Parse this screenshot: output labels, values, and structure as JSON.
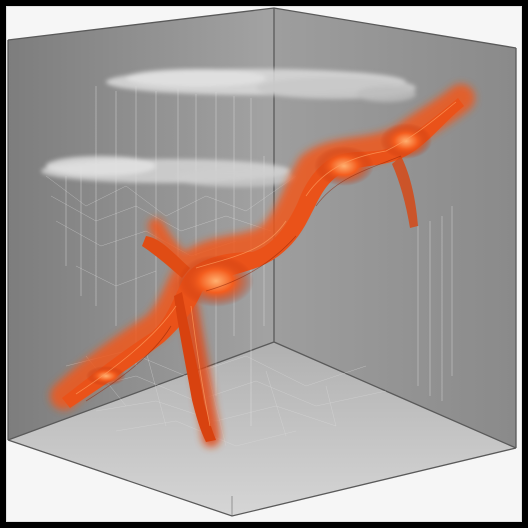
{
  "scene": {
    "subject": "cube-with-orange-filament-structure",
    "colors": {
      "background": "#000000",
      "paper": "#f4f4f4",
      "wall_left": "#8f8f8f",
      "wall_back": "#9a9a9a",
      "floor": "#c9c9c9",
      "edge": "#5f5f5f",
      "filament_dark": "#c7360d",
      "filament_mid": "#f0581c",
      "filament_light": "#ff8a3d",
      "cloud": "#d9d9d9",
      "threads": "#e6e6e6"
    }
  }
}
